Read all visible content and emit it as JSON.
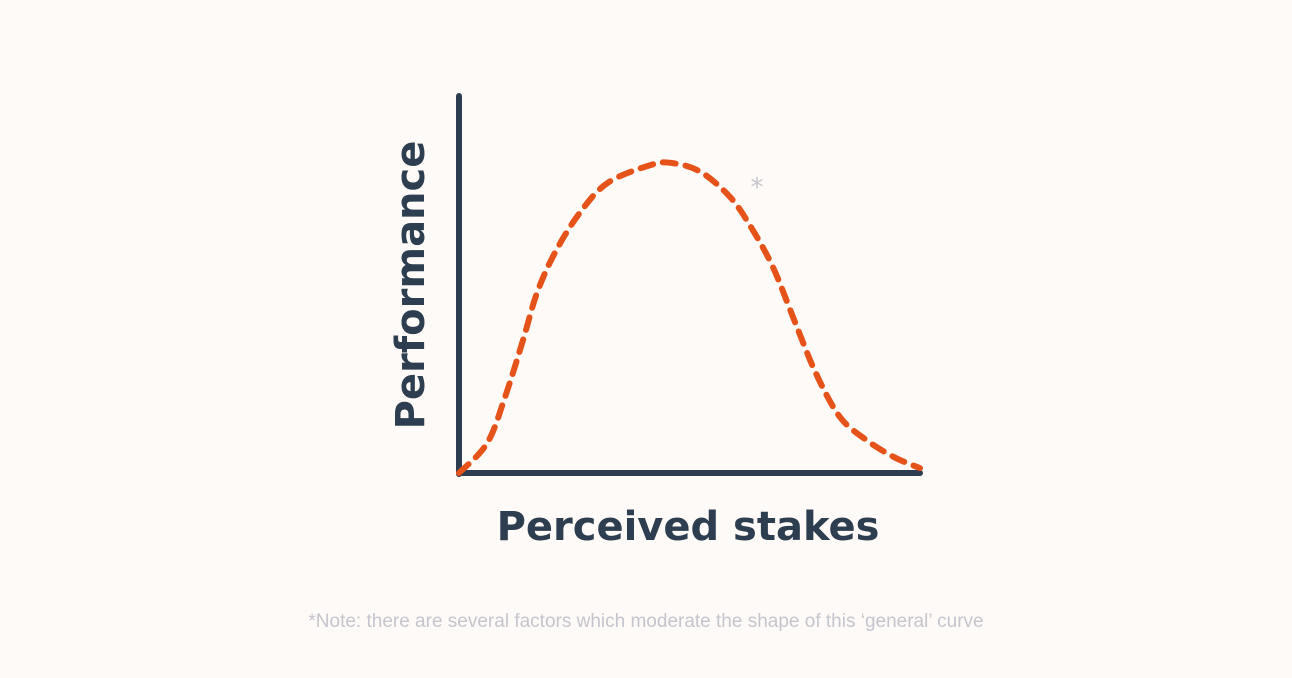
{
  "chart_data": {
    "type": "line",
    "title": "",
    "xlabel": "Perceived stakes",
    "ylabel": "Performance",
    "xlim": [
      0,
      100
    ],
    "ylim": [
      0,
      100
    ],
    "grid": false,
    "ticks": false,
    "line_style": "dashed",
    "annotation": "*",
    "series": [
      {
        "color": "#e5531a",
        "x": [
          0,
          6.1,
          10.0,
          13.9,
          16.9,
          20.8,
          26.2,
          32.3,
          41.6,
          46.4,
          52.5,
          58.8,
          63.3,
          68.1,
          72.7,
          77.4,
          82.6,
          88.3,
          94.4,
          100
        ],
        "y": [
          0,
          7.9,
          20.2,
          35.3,
          47.7,
          58.4,
          69.0,
          77.0,
          81.7,
          82.2,
          79.8,
          73.2,
          65.3,
          54.6,
          40.6,
          26.5,
          14.9,
          8.8,
          4.2,
          1.3
        ]
      }
    ]
  },
  "colors": {
    "axis": "#2c3e50",
    "curve": "#e5531a",
    "note": "#c5c5cd",
    "background": "#fefaf7"
  },
  "note": "*Note: there are several factors which moderate the shape of this ‘general’ curve"
}
